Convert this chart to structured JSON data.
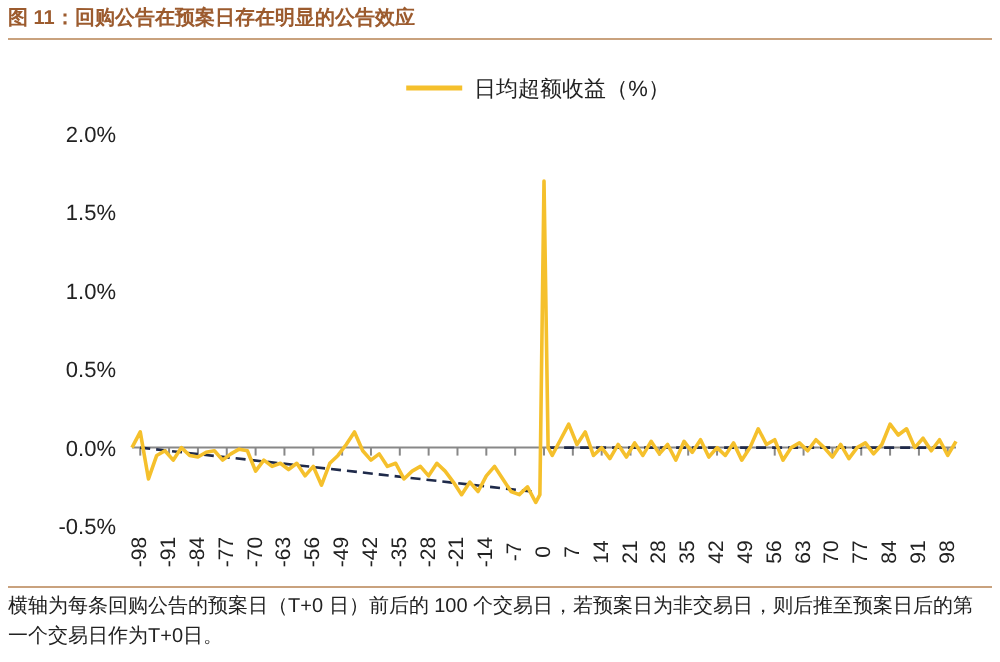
{
  "chart_data": {
    "type": "line",
    "title": "图 11：回购公告在预案日存在明显的公告效应",
    "annotations": [
      "横轴为每条回购公告的预案日（T+0 日）前后的 100 个交易日，若预案日为非交易日，则后推至预案日后的第一个交易日作为T+0日。"
    ],
    "legend": "top",
    "xlim": [
      -100,
      100
    ],
    "xticks": [
      -98,
      -91,
      -84,
      -77,
      -70,
      -63,
      -56,
      -49,
      -42,
      -35,
      -28,
      -21,
      -14,
      -7,
      0,
      7,
      14,
      21,
      28,
      35,
      42,
      49,
      56,
      63,
      70,
      77,
      84,
      91,
      98
    ],
    "ylim": [
      -0.5,
      2.0
    ],
    "yticks": [
      {
        "value": -0.5,
        "label": "-0.5%"
      },
      {
        "value": 0,
        "label": "0.0%"
      },
      {
        "value": 0.5,
        "label": "0.5%"
      },
      {
        "value": 1.0,
        "label": "1.0%"
      },
      {
        "value": 1.5,
        "label": "1.5%"
      },
      {
        "value": 2.0,
        "label": "2.0%"
      }
    ],
    "series": [
      {
        "name": "日均超额收益（%）",
        "color": "#f5c02c",
        "line_style": "solid",
        "x": [
          -100,
          -98,
          -96,
          -94,
          -92,
          -90,
          -88,
          -86,
          -84,
          -82,
          -80,
          -78,
          -76,
          -74,
          -72,
          -70,
          -68,
          -66,
          -64,
          -62,
          -60,
          -58,
          -56,
          -54,
          -52,
          -50,
          -48,
          -46,
          -44,
          -42,
          -40,
          -38,
          -36,
          -34,
          -32,
          -30,
          -28,
          -26,
          -24,
          -22,
          -20,
          -18,
          -16,
          -14,
          -12,
          -10,
          -8,
          -6,
          -4,
          -2,
          -1,
          0,
          1,
          2,
          4,
          6,
          8,
          10,
          12,
          14,
          16,
          18,
          20,
          22,
          24,
          26,
          28,
          30,
          32,
          34,
          36,
          38,
          40,
          42,
          44,
          46,
          48,
          50,
          52,
          54,
          56,
          58,
          60,
          62,
          64,
          66,
          68,
          70,
          72,
          74,
          76,
          78,
          80,
          82,
          84,
          86,
          88,
          90,
          92,
          94,
          96,
          98,
          100
        ],
        "values": [
          0.0,
          0.1,
          -0.2,
          -0.05,
          -0.02,
          -0.08,
          0.0,
          -0.05,
          -0.06,
          -0.03,
          -0.02,
          -0.08,
          -0.04,
          -0.01,
          -0.02,
          -0.15,
          -0.08,
          -0.12,
          -0.1,
          -0.14,
          -0.1,
          -0.18,
          -0.12,
          -0.24,
          -0.1,
          -0.05,
          0.02,
          0.1,
          -0.02,
          -0.08,
          -0.04,
          -0.12,
          -0.1,
          -0.2,
          -0.15,
          -0.12,
          -0.18,
          -0.1,
          -0.15,
          -0.22,
          -0.3,
          -0.22,
          -0.28,
          -0.18,
          -0.12,
          -0.2,
          -0.28,
          -0.3,
          -0.25,
          -0.35,
          -0.3,
          1.7,
          0.0,
          -0.05,
          0.05,
          0.15,
          0.02,
          0.1,
          -0.05,
          0.0,
          -0.07,
          0.02,
          -0.06,
          0.03,
          -0.05,
          0.04,
          -0.04,
          0.02,
          -0.08,
          0.04,
          -0.03,
          0.05,
          -0.06,
          0.0,
          -0.05,
          0.03,
          -0.08,
          0.0,
          0.12,
          0.02,
          0.05,
          -0.08,
          0.0,
          0.03,
          -0.02,
          0.05,
          0.0,
          -0.06,
          0.02,
          -0.07,
          0.0,
          0.03,
          -0.04,
          0.02,
          0.15,
          0.08,
          0.12,
          0.0,
          0.06,
          -0.02,
          0.05,
          -0.05,
          0.04
        ]
      },
      {
        "color": "#1f2a4a",
        "line_style": "dashed",
        "x": [
          -98,
          -3,
          -1,
          1,
          98
        ],
        "values": [
          0.0,
          -0.28,
          null,
          0.0,
          0.0
        ]
      }
    ]
  }
}
